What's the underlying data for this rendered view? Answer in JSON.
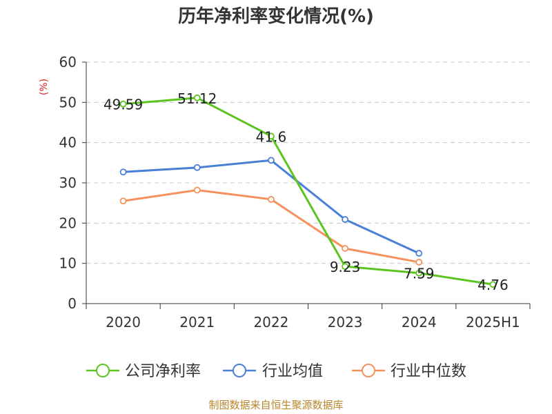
{
  "chart_data": {
    "type": "line",
    "title": "历年净利率变化情况(%)",
    "ylabel": "(%)",
    "xlabel": "",
    "categories": [
      "2020",
      "2021",
      "2022",
      "2023",
      "2024",
      "2025H1"
    ],
    "ylim": [
      0,
      60
    ],
    "yticks": [
      0,
      10,
      20,
      30,
      40,
      50,
      60
    ],
    "grid": true,
    "legend_position": "bottom",
    "series": [
      {
        "name": "公司净利率",
        "color": "#5bc41f",
        "values": [
          49.59,
          51.12,
          41.6,
          9.23,
          7.59,
          4.76
        ],
        "labels": [
          "49.59",
          "51.12",
          "41.6",
          "9.23",
          "7.59",
          "4.76"
        ]
      },
      {
        "name": "行业均值",
        "color": "#4a7fd6",
        "values": [
          32.7,
          33.8,
          35.6,
          20.9,
          12.5,
          null
        ]
      },
      {
        "name": "行业中位数",
        "color": "#f5915c",
        "values": [
          25.5,
          28.2,
          25.9,
          13.7,
          10.3,
          null
        ]
      }
    ]
  },
  "footer": {
    "source": "制图数据来自恒生聚源数据库"
  }
}
